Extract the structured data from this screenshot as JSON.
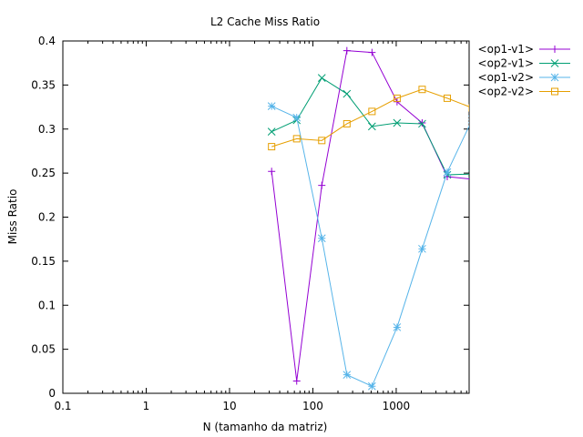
{
  "chart_data": {
    "type": "line",
    "title": "L2 Cache Miss Ratio",
    "xlabel": "N (tamanho da matriz)",
    "ylabel": "Miss Ratio",
    "x_scale": "log",
    "xlim": [
      0.1,
      7500
    ],
    "ylim": [
      0,
      0.4
    ],
    "x_ticks": [
      {
        "value": 0.1,
        "label": "0.1"
      },
      {
        "value": 1,
        "label": "1"
      },
      {
        "value": 10,
        "label": "10"
      },
      {
        "value": 100,
        "label": "100"
      },
      {
        "value": 1000,
        "label": "1000"
      }
    ],
    "y_ticks": [
      {
        "value": 0,
        "label": "0"
      },
      {
        "value": 0.05,
        "label": "0.05"
      },
      {
        "value": 0.1,
        "label": "0.1"
      },
      {
        "value": 0.15,
        "label": "0.15"
      },
      {
        "value": 0.2,
        "label": "0.2"
      },
      {
        "value": 0.25,
        "label": "0.25"
      },
      {
        "value": 0.3,
        "label": "0.3"
      },
      {
        "value": 0.35,
        "label": "0.35"
      },
      {
        "value": 0.4,
        "label": "0.4"
      }
    ],
    "legend_position": "outside-top-right",
    "grid": false,
    "series": [
      {
        "name": "<op1-v1>",
        "color": "#9400d3",
        "marker": "plus",
        "x": [
          32,
          64,
          128,
          256,
          512,
          1024,
          2048,
          4096,
          8192
        ],
        "y": [
          0.252,
          0.014,
          0.236,
          0.389,
          0.387,
          0.331,
          0.307,
          0.246,
          0.243
        ]
      },
      {
        "name": "<op2-v1>",
        "color": "#009e73",
        "marker": "cross",
        "x": [
          32,
          64,
          128,
          256,
          512,
          1024,
          2048,
          4096,
          8192
        ],
        "y": [
          0.297,
          0.31,
          0.358,
          0.34,
          0.303,
          0.307,
          0.306,
          0.248,
          0.249
        ]
      },
      {
        "name": "<op1-v2>",
        "color": "#56b4e9",
        "marker": "star",
        "x": [
          32,
          64,
          128,
          256,
          512,
          1024,
          2048,
          4096,
          8192
        ],
        "y": [
          0.326,
          0.313,
          0.176,
          0.021,
          0.008,
          0.075,
          0.164,
          0.251,
          0.311
        ]
      },
      {
        "name": "<op2-v2>",
        "color": "#e69f00",
        "marker": "square",
        "x": [
          32,
          64,
          128,
          256,
          512,
          1024,
          2048,
          4096,
          8192
        ],
        "y": [
          0.28,
          0.289,
          0.287,
          0.306,
          0.32,
          0.335,
          0.345,
          0.335,
          0.324
        ]
      }
    ]
  }
}
